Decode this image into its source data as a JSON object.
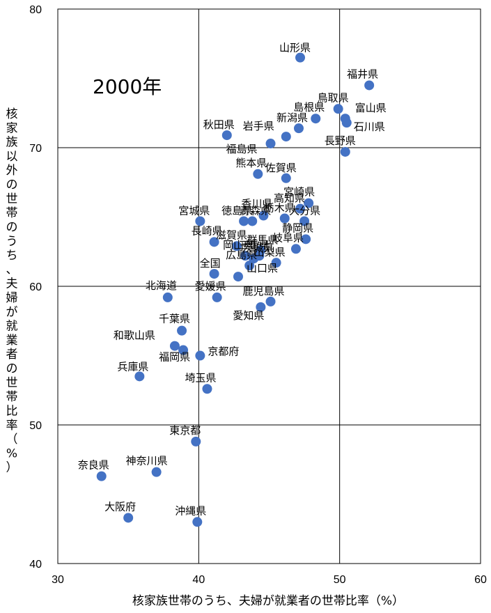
{
  "chart_data": {
    "type": "scatter",
    "title": "2000年",
    "xlabel": "核家族世帯のうち、夫婦が就業者の世帯比率（%）",
    "ylabel": "核家族以外の世帯のうち、夫婦が就業者の世帯比率（%）",
    "xlim": [
      30,
      60
    ],
    "ylim": [
      40,
      80
    ],
    "xticks": [
      "30",
      "40",
      "50",
      "60"
    ],
    "yticks": [
      "40",
      "50",
      "60",
      "70",
      "80"
    ],
    "grid": true,
    "marker_color": "#4472C4",
    "points": [
      {
        "label": "山形県",
        "x": 47.2,
        "y": 76.5
      },
      {
        "label": "福井県",
        "x": 52.1,
        "y": 74.5
      },
      {
        "label": "鳥取県",
        "x": 49.9,
        "y": 72.8
      },
      {
        "label": "島根県",
        "x": 48.3,
        "y": 72.1
      },
      {
        "label": "富山県",
        "x": 50.4,
        "y": 72.1
      },
      {
        "label": "新潟県",
        "x": 47.1,
        "y": 71.4
      },
      {
        "label": "石川県",
        "x": 50.5,
        "y": 71.8
      },
      {
        "label": "秋田県",
        "x": 42.0,
        "y": 70.9
      },
      {
        "label": "岩手県",
        "x": 46.2,
        "y": 70.8
      },
      {
        "label": "福島県",
        "x": 45.1,
        "y": 70.3
      },
      {
        "label": "長野県",
        "x": 50.4,
        "y": 69.7
      },
      {
        "label": "熊本県",
        "x": 44.2,
        "y": 68.1
      },
      {
        "label": "佐賀県",
        "x": 46.2,
        "y": 67.8
      },
      {
        "label": "宮崎県",
        "x": 47.8,
        "y": 66.0
      },
      {
        "label": "高知県",
        "x": 47.2,
        "y": 65.6
      },
      {
        "label": "香川県",
        "x": 44.6,
        "y": 65.1
      },
      {
        "label": "宮城県",
        "x": 40.1,
        "y": 64.7
      },
      {
        "label": "徳島県",
        "x": 43.2,
        "y": 64.7
      },
      {
        "label": "青森県",
        "x": 43.8,
        "y": 64.7
      },
      {
        "label": "栃木県",
        "x": 46.1,
        "y": 64.9
      },
      {
        "label": "大分県",
        "x": 47.5,
        "y": 64.7
      },
      {
        "label": "静岡県",
        "x": 47.6,
        "y": 63.4
      },
      {
        "label": "長崎県",
        "x": 41.1,
        "y": 63.2
      },
      {
        "label": "岐阜県",
        "x": 46.9,
        "y": 62.7
      },
      {
        "label": "滋賀県",
        "x": 42.7,
        "y": 62.9
      },
      {
        "label": "群馬県",
        "x": 44.4,
        "y": 62.6
      },
      {
        "label": "三重県",
        "x": 44.3,
        "y": 62.2
      },
      {
        "label": "岡山県",
        "x": 43.3,
        "y": 62.2
      },
      {
        "label": "茨城県",
        "x": 43.9,
        "y": 62.0
      },
      {
        "label": "広島県",
        "x": 43.6,
        "y": 61.5
      },
      {
        "label": "山梨県",
        "x": 45.5,
        "y": 61.7
      },
      {
        "label": "全国",
        "x": 41.1,
        "y": 60.9
      },
      {
        "label": "山口県",
        "x": 42.8,
        "y": 60.7
      },
      {
        "label": "北海道",
        "x": 37.8,
        "y": 59.2
      },
      {
        "label": "愛媛県",
        "x": 41.3,
        "y": 59.2
      },
      {
        "label": "鹿児島県",
        "x": 45.1,
        "y": 58.9
      },
      {
        "label": "愛知県",
        "x": 44.4,
        "y": 58.5
      },
      {
        "label": "千葉県",
        "x": 38.8,
        "y": 56.8
      },
      {
        "label": "和歌山県",
        "x": 38.3,
        "y": 55.7
      },
      {
        "label": "福岡県",
        "x": 38.9,
        "y": 55.4
      },
      {
        "label": "京都府",
        "x": 40.1,
        "y": 55.0
      },
      {
        "label": "兵庫県",
        "x": 35.8,
        "y": 53.5
      },
      {
        "label": "埼玉県",
        "x": 40.6,
        "y": 52.6
      },
      {
        "label": "東京都",
        "x": 39.8,
        "y": 48.8
      },
      {
        "label": "奈良県",
        "x": 33.1,
        "y": 46.3
      },
      {
        "label": "神奈川県",
        "x": 37.0,
        "y": 46.6
      },
      {
        "label": "大阪府",
        "x": 35.0,
        "y": 43.3
      },
      {
        "label": "沖縄県",
        "x": 39.9,
        "y": 43.0
      }
    ]
  }
}
